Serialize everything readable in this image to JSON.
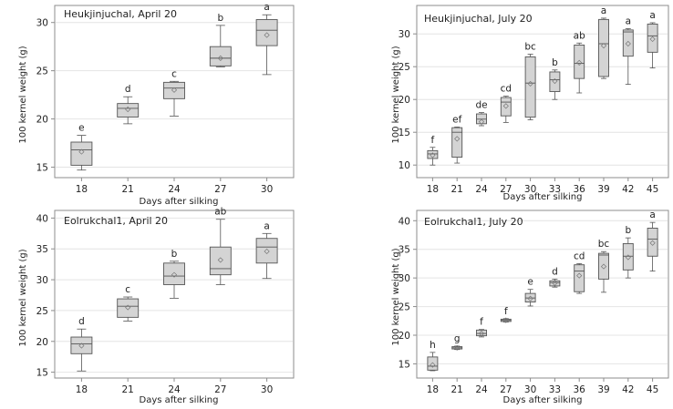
{
  "colors": {
    "box_fill": "#d4d4d4",
    "box_stroke": "#555555",
    "frame": "#8c8c8c",
    "grid": "#e4e4e4",
    "text": "#222222"
  },
  "chart_data": [
    {
      "type": "box",
      "title": "Heukjinjuchal, April 20",
      "xlabel": "Days after silking",
      "ylabel": "100 kernel weight (g)",
      "categories": [
        "18",
        "21",
        "24",
        "27",
        "30"
      ],
      "yticks": [
        15,
        20,
        25,
        30
      ],
      "ylim": [
        14.2,
        31.2
      ],
      "grid": true,
      "boxes": [
        {
          "min": 14.7,
          "q1": 15.2,
          "median": 16.8,
          "q3": 17.6,
          "max": 18.3,
          "mean": 16.6,
          "letter": "e"
        },
        {
          "min": 19.5,
          "q1": 20.2,
          "median": 21.1,
          "q3": 21.6,
          "max": 22.3,
          "mean": 21.0,
          "letter": "d"
        },
        {
          "min": 20.3,
          "q1": 22.1,
          "median": 23.2,
          "q3": 23.8,
          "max": 23.9,
          "mean": 23.0,
          "letter": "c"
        },
        {
          "min": 25.4,
          "q1": 25.5,
          "median": 26.3,
          "q3": 27.5,
          "max": 29.7,
          "mean": 26.3,
          "letter": "b"
        },
        {
          "min": 24.6,
          "q1": 27.6,
          "median": 29.2,
          "q3": 30.3,
          "max": 30.8,
          "mean": 28.7,
          "letter": "a"
        }
      ]
    },
    {
      "type": "box",
      "title": "Heukjinjuchal, July 20",
      "xlabel": "Days after silking",
      "ylabel": "100 kernel weight (g)",
      "categories": [
        "18",
        "21",
        "24",
        "27",
        "30",
        "33",
        "36",
        "39",
        "42",
        "45"
      ],
      "yticks": [
        10,
        15,
        20,
        25,
        30
      ],
      "ylim": [
        8.5,
        33.5
      ],
      "grid": true,
      "boxes": [
        {
          "min": 10.0,
          "q1": 11.0,
          "median": 11.7,
          "q3": 12.2,
          "max": 12.7,
          "mean": 11.5,
          "letter": "f"
        },
        {
          "min": 10.3,
          "q1": 11.2,
          "median": 15.0,
          "q3": 15.7,
          "max": 15.8,
          "mean": 14.0,
          "letter": "ef"
        },
        {
          "min": 16.0,
          "q1": 16.3,
          "median": 17.0,
          "q3": 17.8,
          "max": 18.0,
          "mean": 16.6,
          "letter": "de"
        },
        {
          "min": 16.5,
          "q1": 17.5,
          "median": 19.6,
          "q3": 20.3,
          "max": 20.5,
          "mean": 19.0,
          "letter": "cd"
        },
        {
          "min": 16.9,
          "q1": 17.3,
          "median": 22.5,
          "q3": 26.5,
          "max": 26.9,
          "mean": 22.4,
          "letter": "bc"
        },
        {
          "min": 20.0,
          "q1": 21.2,
          "median": 23.0,
          "q3": 24.2,
          "max": 24.5,
          "mean": 22.8,
          "letter": "b"
        },
        {
          "min": 21.0,
          "q1": 23.2,
          "median": 25.5,
          "q3": 28.3,
          "max": 28.6,
          "mean": 25.6,
          "letter": "ab"
        },
        {
          "min": 23.2,
          "q1": 23.5,
          "median": 28.5,
          "q3": 32.2,
          "max": 32.4,
          "mean": 28.2,
          "letter": "a"
        },
        {
          "min": 22.3,
          "q1": 26.6,
          "median": 30.3,
          "q3": 30.6,
          "max": 30.8,
          "mean": 28.5,
          "letter": "a"
        },
        {
          "min": 24.8,
          "q1": 27.2,
          "median": 29.7,
          "q3": 31.5,
          "max": 31.7,
          "mean": 29.2,
          "letter": "a"
        }
      ]
    },
    {
      "type": "box",
      "title": "Eolrukchal1, April 20",
      "xlabel": "Days after silking",
      "ylabel": "100 kernel weight (g)",
      "categories": [
        "18",
        "21",
        "24",
        "27",
        "30"
      ],
      "yticks": [
        15,
        20,
        25,
        30,
        35,
        40
      ],
      "ylim": [
        14.5,
        40.5
      ],
      "grid": true,
      "boxes": [
        {
          "min": 15.2,
          "q1": 18.0,
          "median": 19.6,
          "q3": 20.7,
          "max": 22.0,
          "mean": 19.3,
          "letter": "d"
        },
        {
          "min": 23.3,
          "q1": 23.9,
          "median": 25.7,
          "q3": 26.9,
          "max": 27.2,
          "mean": 25.5,
          "letter": "c"
        },
        {
          "min": 27.0,
          "q1": 29.2,
          "median": 30.6,
          "q3": 32.7,
          "max": 33.0,
          "mean": 30.8,
          "letter": "b"
        },
        {
          "min": 29.2,
          "q1": 30.8,
          "median": 31.8,
          "q3": 35.3,
          "max": 39.8,
          "mean": 33.2,
          "letter": "ab"
        },
        {
          "min": 30.2,
          "q1": 32.7,
          "median": 35.3,
          "q3": 36.7,
          "max": 37.5,
          "mean": 34.6,
          "letter": "a"
        }
      ]
    },
    {
      "type": "box",
      "title": "Eolrukchal1, July 20",
      "xlabel": "Days after silking",
      "ylabel": "100 kernel weight (g)",
      "categories": [
        "18",
        "21",
        "24",
        "27",
        "30",
        "33",
        "36",
        "39",
        "42",
        "45"
      ],
      "yticks": [
        15,
        20,
        25,
        30,
        35,
        40
      ],
      "ylim": [
        13.0,
        41.0
      ],
      "grid": true,
      "boxes": [
        {
          "min": 13.8,
          "q1": 13.9,
          "median": 14.6,
          "q3": 16.2,
          "max": 17.0,
          "mean": 14.8,
          "letter": "h"
        },
        {
          "min": 17.5,
          "q1": 17.6,
          "median": 17.8,
          "q3": 18.0,
          "max": 18.1,
          "mean": 17.8,
          "letter": "g"
        },
        {
          "min": 19.7,
          "q1": 19.9,
          "median": 20.3,
          "q3": 20.9,
          "max": 21.0,
          "mean": 20.3,
          "letter": "f"
        },
        {
          "min": 22.3,
          "q1": 22.4,
          "median": 22.6,
          "q3": 22.8,
          "max": 22.9,
          "mean": 22.6,
          "letter": "f"
        },
        {
          "min": 25.1,
          "q1": 25.8,
          "median": 26.5,
          "q3": 27.3,
          "max": 28.0,
          "mean": 26.4,
          "letter": "e"
        },
        {
          "min": 28.4,
          "q1": 28.6,
          "median": 29.2,
          "q3": 29.5,
          "max": 29.8,
          "mean": 29.1,
          "letter": "d"
        },
        {
          "min": 27.3,
          "q1": 27.6,
          "median": 31.2,
          "q3": 32.3,
          "max": 32.5,
          "mean": 30.4,
          "letter": "cd"
        },
        {
          "min": 27.5,
          "q1": 29.8,
          "median": 34.0,
          "q3": 34.3,
          "max": 34.6,
          "mean": 32.0,
          "letter": "bc"
        },
        {
          "min": 30.0,
          "q1": 31.4,
          "median": 33.8,
          "q3": 36.0,
          "max": 37.0,
          "mean": 33.6,
          "letter": "b"
        },
        {
          "min": 31.2,
          "q1": 33.8,
          "median": 36.8,
          "q3": 38.7,
          "max": 39.7,
          "mean": 36.1,
          "letter": "a"
        }
      ]
    }
  ]
}
